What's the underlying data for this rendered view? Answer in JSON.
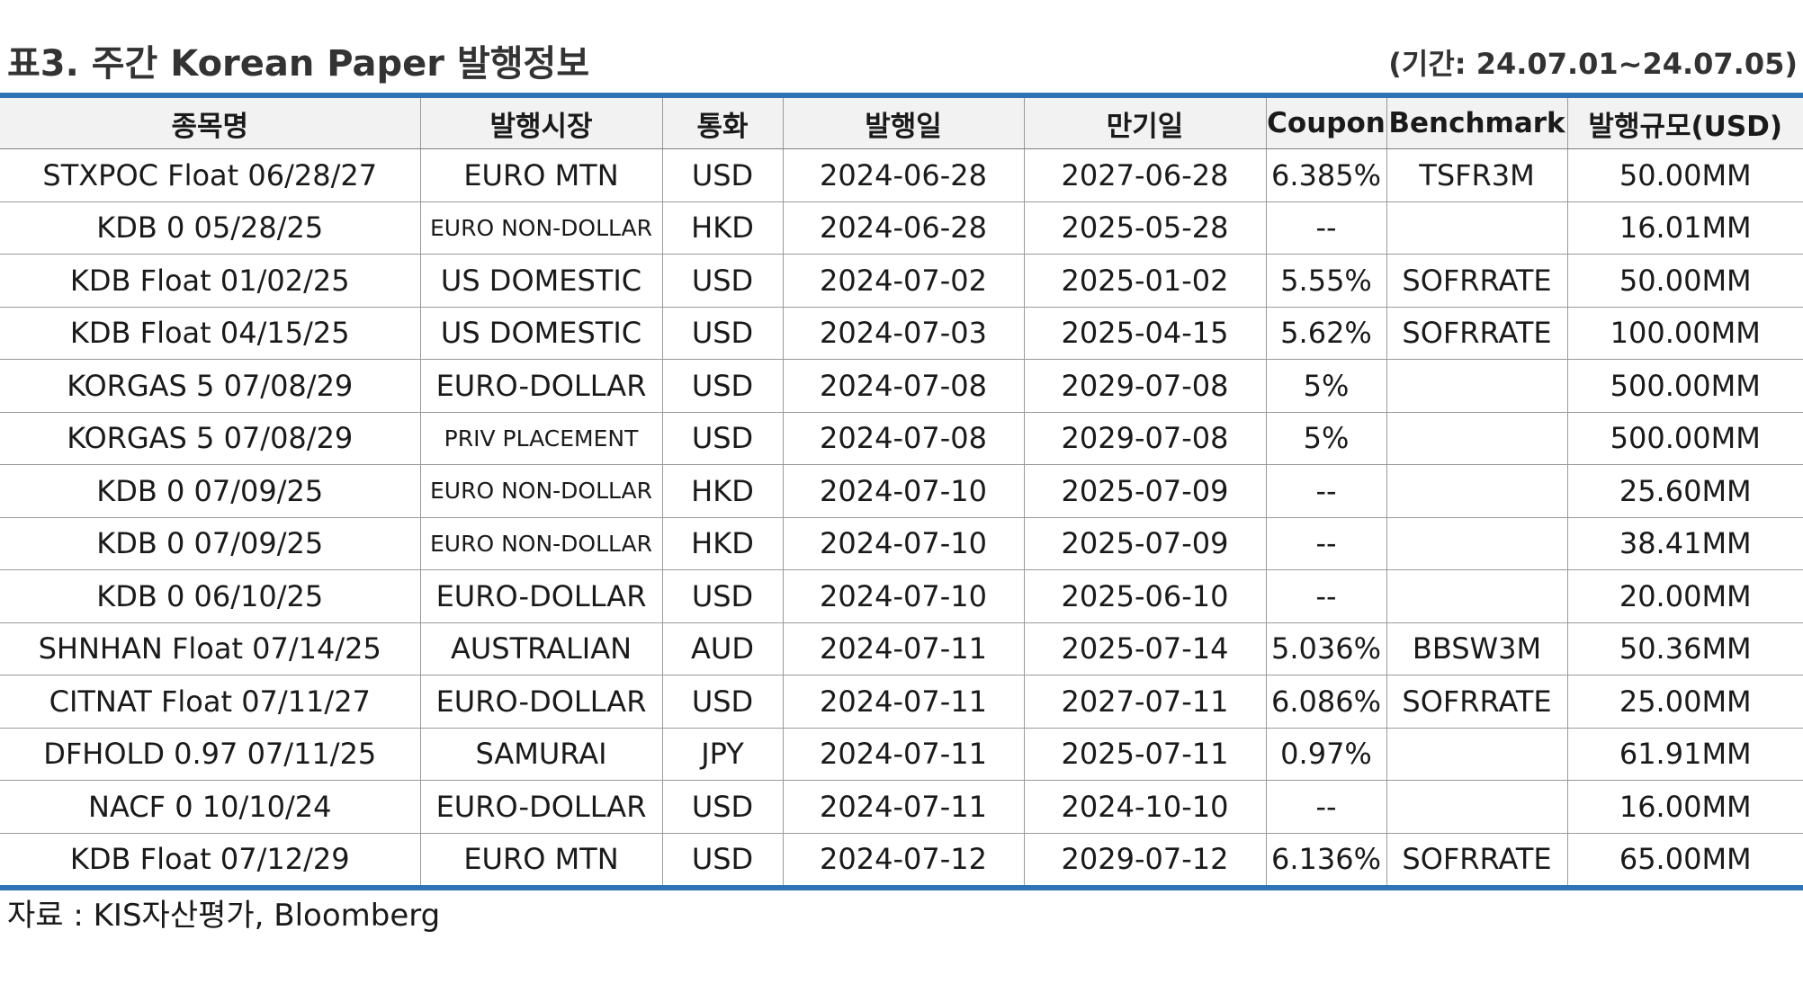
{
  "header": {
    "title": "표3. 주간 Korean Paper 발행정보",
    "period": "(기간: 24.07.01~24.07.05)"
  },
  "table": {
    "columns": [
      "종목명",
      "발행시장",
      "통화",
      "발행일",
      "만기일",
      "Coupon",
      "Benchmark",
      "발행규모(USD)"
    ],
    "rows": [
      [
        "STXPOC Float 06/28/27",
        "EURO MTN",
        "USD",
        "2024-06-28",
        "2027-06-28",
        "6.385%",
        "TSFR3M",
        "50.00MM"
      ],
      [
        "KDB 0 05/28/25",
        "EURO NON-DOLLAR",
        "HKD",
        "2024-06-28",
        "2025-05-28",
        "--",
        "",
        "16.01MM"
      ],
      [
        "KDB Float 01/02/25",
        "US DOMESTIC",
        "USD",
        "2024-07-02",
        "2025-01-02",
        "5.55%",
        "SOFRRATE",
        "50.00MM"
      ],
      [
        "KDB Float 04/15/25",
        "US DOMESTIC",
        "USD",
        "2024-07-03",
        "2025-04-15",
        "5.62%",
        "SOFRRATE",
        "100.00MM"
      ],
      [
        "KORGAS 5 07/08/29",
        "EURO-DOLLAR",
        "USD",
        "2024-07-08",
        "2029-07-08",
        "5%",
        "",
        "500.00MM"
      ],
      [
        "KORGAS 5 07/08/29",
        "PRIV PLACEMENT",
        "USD",
        "2024-07-08",
        "2029-07-08",
        "5%",
        "",
        "500.00MM"
      ],
      [
        "KDB 0 07/09/25",
        "EURO NON-DOLLAR",
        "HKD",
        "2024-07-10",
        "2025-07-09",
        "--",
        "",
        "25.60MM"
      ],
      [
        "KDB 0 07/09/25",
        "EURO NON-DOLLAR",
        "HKD",
        "2024-07-10",
        "2025-07-09",
        "--",
        "",
        "38.41MM"
      ],
      [
        "KDB 0 06/10/25",
        "EURO-DOLLAR",
        "USD",
        "2024-07-10",
        "2025-06-10",
        "--",
        "",
        "20.00MM"
      ],
      [
        "SHNHAN Float 07/14/25",
        "AUSTRALIAN",
        "AUD",
        "2024-07-11",
        "2025-07-14",
        "5.036%",
        "BBSW3M",
        "50.36MM"
      ],
      [
        "CITNAT Float 07/11/27",
        "EURO-DOLLAR",
        "USD",
        "2024-07-11",
        "2027-07-11",
        "6.086%",
        "SOFRRATE",
        "25.00MM"
      ],
      [
        "DFHOLD 0.97 07/11/25",
        "SAMURAI",
        "JPY",
        "2024-07-11",
        "2025-07-11",
        "0.97%",
        "",
        "61.91MM"
      ],
      [
        "NACF 0 10/10/24",
        "EURO-DOLLAR",
        "USD",
        "2024-07-11",
        "2024-10-10",
        "--",
        "",
        "16.00MM"
      ],
      [
        "KDB Float 07/12/29",
        "EURO MTN",
        "USD",
        "2024-07-12",
        "2029-07-12",
        "6.136%",
        "SOFRRATE",
        "65.00MM"
      ]
    ]
  },
  "footer": {
    "source": "자료 : KIS자산평가, Bloomberg"
  },
  "colors": {
    "rule": "#2e74b5",
    "header_bg": "#f2f2f2",
    "grid": "#9a9a9a"
  }
}
